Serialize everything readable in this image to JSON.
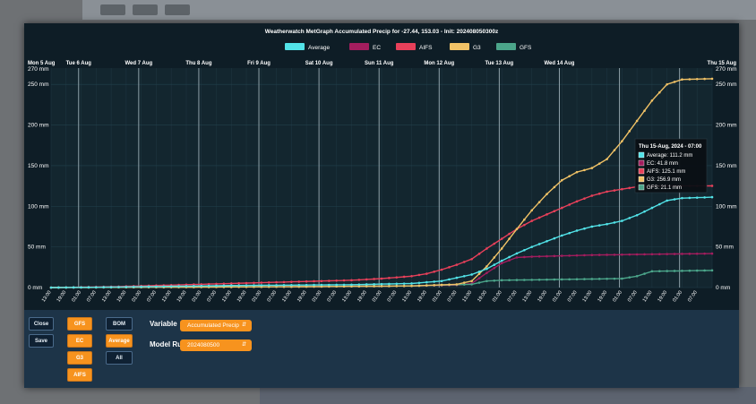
{
  "chart_data": {
    "type": "line",
    "title": "Weatherwatch MetGraph Accumulated Precip for -27.44, 153.03 - Init: 202408050300z",
    "legend_position": "top-center",
    "date_labels": [
      "Mon 5 Aug",
      "Tue 6 Aug",
      "Wed 7 Aug",
      "Thu 8 Aug",
      "Fri 9 Aug",
      "Sat 10 Aug",
      "Sun 11 Aug",
      "Mon 12 Aug",
      "Tue 13 Aug",
      "Wed 14 Aug",
      "Thu 15 Aug"
    ],
    "time_labels": [
      "13:00",
      "19:00",
      "01:00",
      "07:00",
      "13:00",
      "19:00",
      "01:00",
      "07:00",
      "13:00",
      "19:00",
      "01:00",
      "07:00",
      "13:00",
      "19:00",
      "01:00",
      "07:00",
      "13:00",
      "19:00",
      "01:00",
      "07:00",
      "13:00",
      "19:00",
      "01:00",
      "07:00",
      "13:00",
      "19:00",
      "01:00",
      "07:00",
      "13:00",
      "19:00",
      "01:00",
      "07:00",
      "13:00",
      "19:00",
      "01:00",
      "07:00",
      "13:00",
      "19:00",
      "01:00",
      "07:00",
      "13:00",
      "19:00",
      "01:00",
      "07:00"
    ],
    "y_ticks": [
      "0 mm",
      "50 mm",
      "100 mm",
      "150 mm",
      "200 mm",
      "250 mm",
      "270 mm"
    ],
    "ylim": [
      0,
      270
    ],
    "xlim_hours": [
      0,
      246
    ],
    "series": [
      {
        "name": "Average",
        "color": "#52e3e8",
        "points": [
          [
            0,
            0
          ],
          [
            24,
            0.5
          ],
          [
            48,
            1.5
          ],
          [
            72,
            2.5
          ],
          [
            96,
            3
          ],
          [
            120,
            3.5
          ],
          [
            144,
            5
          ],
          [
            156,
            8
          ],
          [
            162,
            12
          ],
          [
            168,
            16
          ],
          [
            174,
            23
          ],
          [
            180,
            33
          ],
          [
            186,
            42
          ],
          [
            192,
            50
          ],
          [
            198,
            57
          ],
          [
            204,
            64
          ],
          [
            210,
            70
          ],
          [
            216,
            75
          ],
          [
            222,
            78
          ],
          [
            228,
            82
          ],
          [
            234,
            89
          ],
          [
            240,
            98
          ],
          [
            246,
            107
          ],
          [
            252,
            110
          ],
          [
            264,
            111.2
          ]
        ]
      },
      {
        "name": "EC",
        "color": "#a31d5e",
        "points": [
          [
            0,
            0
          ],
          [
            48,
            0.5
          ],
          [
            96,
            1
          ],
          [
            144,
            2
          ],
          [
            162,
            3
          ],
          [
            168,
            5
          ],
          [
            174,
            18
          ],
          [
            180,
            30
          ],
          [
            186,
            37
          ],
          [
            192,
            38
          ],
          [
            204,
            39
          ],
          [
            216,
            40
          ],
          [
            240,
            41
          ],
          [
            264,
            41.8
          ]
        ]
      },
      {
        "name": "AIFS",
        "color": "#e8405a",
        "points": [
          [
            0,
            0
          ],
          [
            24,
            1
          ],
          [
            48,
            3
          ],
          [
            72,
            5
          ],
          [
            96,
            7
          ],
          [
            120,
            9
          ],
          [
            132,
            11
          ],
          [
            144,
            14
          ],
          [
            150,
            17
          ],
          [
            156,
            22
          ],
          [
            162,
            28
          ],
          [
            168,
            35
          ],
          [
            174,
            48
          ],
          [
            180,
            60
          ],
          [
            186,
            72
          ],
          [
            192,
            82
          ],
          [
            198,
            90
          ],
          [
            204,
            98
          ],
          [
            210,
            106
          ],
          [
            216,
            113
          ],
          [
            222,
            118
          ],
          [
            228,
            121
          ],
          [
            234,
            124
          ],
          [
            240,
            125
          ],
          [
            264,
            125.1
          ]
        ]
      },
      {
        "name": "G3",
        "color": "#f1c266",
        "points": [
          [
            0,
            0
          ],
          [
            48,
            0.5
          ],
          [
            96,
            1
          ],
          [
            144,
            2
          ],
          [
            162,
            4
          ],
          [
            168,
            8
          ],
          [
            174,
            26
          ],
          [
            180,
            48
          ],
          [
            186,
            72
          ],
          [
            192,
            95
          ],
          [
            198,
            115
          ],
          [
            204,
            132
          ],
          [
            210,
            142
          ],
          [
            216,
            147
          ],
          [
            222,
            158
          ],
          [
            228,
            180
          ],
          [
            234,
            205
          ],
          [
            240,
            230
          ],
          [
            246,
            250
          ],
          [
            252,
            256
          ],
          [
            264,
            256.9
          ]
        ]
      },
      {
        "name": "GFS",
        "color": "#4ba58a",
        "points": [
          [
            0,
            0
          ],
          [
            48,
            0.5
          ],
          [
            96,
            1
          ],
          [
            144,
            2
          ],
          [
            168,
            4
          ],
          [
            174,
            8
          ],
          [
            180,
            9
          ],
          [
            204,
            10
          ],
          [
            216,
            10.5
          ],
          [
            228,
            11
          ],
          [
            234,
            14
          ],
          [
            240,
            20
          ],
          [
            264,
            21.1
          ]
        ]
      }
    ],
    "tooltip": {
      "title": "Thu 15-Aug, 2024 - 07:00",
      "lines": [
        "Average: 111.2 mm",
        "EC: 41.8 mm",
        "AIFS: 125.1 mm",
        "G3: 256.9 mm",
        "GFS: 21.1 mm"
      ]
    }
  },
  "controls": {
    "close_label": "Close",
    "save_label": "Save",
    "model_buttons": [
      "GFS",
      "EC",
      "G3",
      "AIFS"
    ],
    "aggregate_buttons": [
      "BOM",
      "Average",
      "All"
    ],
    "variable_label": "Variable",
    "variable_value": "Accumulated Precip",
    "model_run_label": "Model Run",
    "model_run_value": "2024080500"
  }
}
